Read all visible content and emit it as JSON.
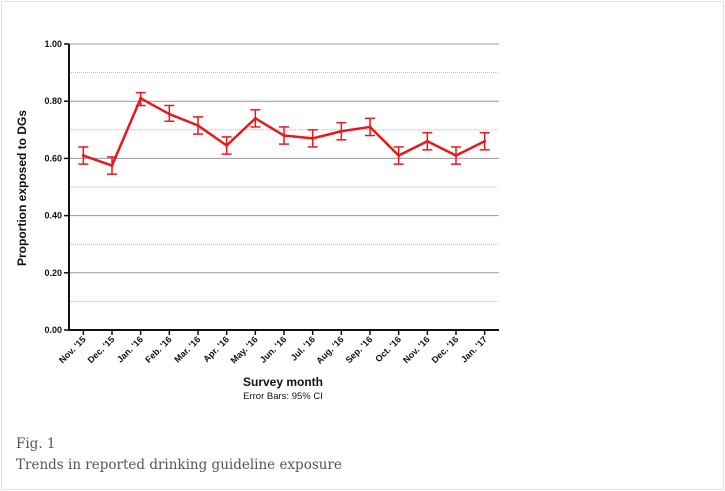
{
  "figure": {
    "label": "Fig. 1",
    "title": "Trends in reported drinking guideline exposure"
  },
  "chart_data": {
    "type": "line",
    "xlabel": "Survey month",
    "ylabel": "Proportion exposed to DGs",
    "note": "Error Bars: 95% CI",
    "categories": [
      "Nov. '15",
      "Dec. '15",
      "Jan. '16",
      "Feb. '16",
      "Mar. '16",
      "Apr. '16",
      "May. '16",
      "Jun. '16",
      "Jul. '16",
      "Aug. '16",
      "Sep. '16",
      "Oct. '16",
      "Nov. '16",
      "Dec. '16",
      "Jan. '17"
    ],
    "series": [
      {
        "values": [
          0.61,
          0.575,
          0.81,
          0.755,
          0.715,
          0.645,
          0.74,
          0.68,
          0.67,
          0.695,
          0.71,
          0.61,
          0.66,
          0.61,
          0.66
        ],
        "ci_lower": [
          0.58,
          0.545,
          0.785,
          0.73,
          0.685,
          0.615,
          0.71,
          0.65,
          0.64,
          0.665,
          0.68,
          0.58,
          0.63,
          0.58,
          0.63
        ],
        "ci_upper": [
          0.64,
          0.605,
          0.83,
          0.785,
          0.745,
          0.675,
          0.77,
          0.71,
          0.7,
          0.725,
          0.74,
          0.64,
          0.69,
          0.64,
          0.69
        ],
        "color": "#e8191c"
      }
    ],
    "ylim": [
      0,
      1
    ],
    "yticks": [
      0.0,
      0.2,
      0.4,
      0.6,
      0.8,
      1.0
    ],
    "ytick_labels": [
      "0.00",
      "0.20",
      "0.40",
      "0.60",
      "0.80",
      "1.00"
    ],
    "major_grid": [
      0.2,
      0.4,
      0.6,
      0.8,
      1.0
    ],
    "minor_grid": [
      0.1,
      0.3,
      0.5,
      0.7,
      0.9
    ],
    "grid": true,
    "colors": {
      "line": "#e8191c",
      "major_grid": "#9a9a9a",
      "minor_grid": "#b5b5b5",
      "axis": "#111111"
    }
  }
}
